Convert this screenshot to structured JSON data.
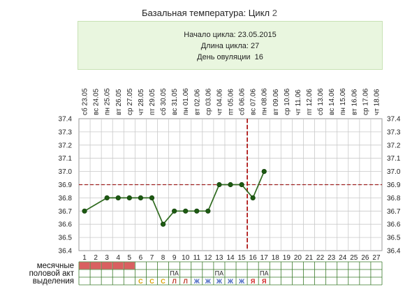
{
  "header": {
    "title": "Базальная температура: Цикл",
    "cycle_number": "2"
  },
  "info": {
    "start_label": "Начало цикла:",
    "start_value": "23.05.2015",
    "length_label": "Длина цикла:",
    "length_value": "27",
    "ovulation_label": "День овуляции",
    "ovulation_value": "16"
  },
  "chart_data": {
    "type": "line",
    "days": [
      1,
      2,
      3,
      4,
      5,
      6,
      7,
      8,
      9,
      10,
      11,
      12,
      13,
      14,
      15,
      16,
      17,
      18,
      19,
      20,
      21,
      22,
      23,
      24,
      25,
      26,
      27
    ],
    "weekdays": [
      "сб",
      "вс",
      "пн",
      "вт",
      "ср",
      "чт",
      "пт",
      "сб",
      "вс",
      "пн",
      "вт",
      "ср",
      "чт",
      "пт",
      "сб",
      "вс",
      "пн",
      "вт",
      "ср",
      "чт",
      "пт",
      "сб",
      "вс",
      "пн",
      "вт",
      "ср",
      "чт"
    ],
    "dates": [
      "23.05",
      "24.05",
      "25.05",
      "26.05",
      "27.05",
      "28.05",
      "29.05",
      "30.05",
      "31.05",
      "01.06",
      "02.06",
      "03.06",
      "04.06",
      "05.06",
      "06.06",
      "07.06",
      "08.06",
      "09.06",
      "10.06",
      "11.06",
      "12.06",
      "13.06",
      "14.06",
      "15.06",
      "16.06",
      "17.06",
      "18.06"
    ],
    "temperatures": [
      36.7,
      null,
      36.8,
      36.8,
      36.8,
      36.8,
      36.8,
      36.6,
      36.7,
      36.7,
      36.7,
      36.7,
      36.9,
      36.9,
      36.9,
      36.8,
      37.0,
      null,
      null,
      null,
      null,
      null,
      null,
      null,
      null,
      null,
      null
    ],
    "ylim": [
      36.4,
      37.4
    ],
    "yticks": [
      "36.4",
      "36.5",
      "36.6",
      "36.7",
      "36.8",
      "36.9",
      "37.0",
      "37.1",
      "37.2",
      "37.3",
      "37.4"
    ],
    "coverline": 36.9,
    "ovulation_day": 16,
    "grid": true,
    "colors": {
      "line": "#2f6b1f",
      "point": "#1d5a12",
      "coverline": "#a02020",
      "ovulation": "#b01818",
      "grid": "#c9c9c9",
      "menses": "#d96060",
      "mucus_c": "#d9a000",
      "mucus_l": "#c04030",
      "mucus_zh": "#4060c0",
      "mucus_ya": "#d02020"
    }
  },
  "rows": {
    "menses_label": "месячные",
    "intercourse_label": "половой акт",
    "discharge_label": "выделения",
    "menses_days": [
      1,
      2,
      3,
      4,
      5
    ],
    "intercourse_days": [
      {
        "day": 9,
        "text": "ПА"
      },
      {
        "day": 13,
        "text": "ПА"
      },
      {
        "day": 17,
        "text": "ПА"
      }
    ],
    "discharge": [
      {
        "day": 6,
        "text": "С",
        "color": "#d9a000"
      },
      {
        "day": 7,
        "text": "С",
        "color": "#d9a000"
      },
      {
        "day": 8,
        "text": "С",
        "color": "#d9a000"
      },
      {
        "day": 9,
        "text": "Л",
        "color": "#c04030"
      },
      {
        "day": 10,
        "text": "Л",
        "color": "#c04030"
      },
      {
        "day": 11,
        "text": "Ж",
        "color": "#4060c0"
      },
      {
        "day": 12,
        "text": "Ж",
        "color": "#4060c0"
      },
      {
        "day": 13,
        "text": "Ж",
        "color": "#4060c0"
      },
      {
        "day": 14,
        "text": "Ж",
        "color": "#4060c0"
      },
      {
        "day": 15,
        "text": "Ж",
        "color": "#4060c0"
      },
      {
        "day": 16,
        "text": "Я",
        "color": "#d02020"
      },
      {
        "day": 17,
        "text": "Я",
        "color": "#d02020"
      }
    ]
  }
}
